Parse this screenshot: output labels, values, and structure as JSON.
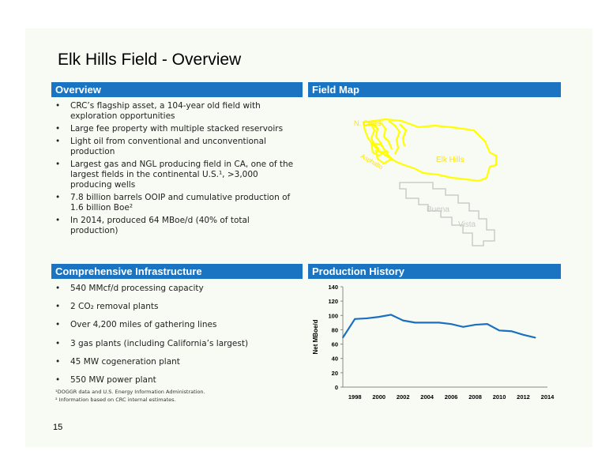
{
  "slide": {
    "title": "Elk Hills Field - Overview",
    "page_number": "15"
  },
  "overview": {
    "header": "Overview",
    "bullets": [
      "CRC’s flagship asset, a 104-year old field with exploration opportunities",
      "Large fee property with multiple stacked reservoirs",
      "Light oil from conventional and unconventional production",
      "Largest gas and NGL producing field in CA, one of the largest fields in the continental U.S.¹, >3,000 producing wells",
      "7.8 billion barrels OOIP and cumulative production of 1.6 billion Boe²",
      "In 2014, produced 64 MBoe/d (40% of total production)"
    ]
  },
  "field_map": {
    "header": "Field Map",
    "labels": {
      "north_coles": "N. Coles",
      "asphalto": "Asphalto",
      "elk_hills": "Elk Hills",
      "buena": "Buena",
      "vista": "Vista"
    },
    "colors": {
      "field_outline": "#ffff00",
      "other_outline": "#bfbfbf"
    }
  },
  "infrastructure": {
    "header": "Comprehensive Infrastructure",
    "bullets": [
      "540 MMcf/d processing capacity",
      "2 CO₂ removal plants",
      "Over 4,200 miles of gathering lines",
      "3 gas plants (including California’s largest)",
      "45 MW cogeneration plant",
      "550 MW power plant"
    ]
  },
  "footnotes": [
    "¹DOGGR data and U.S. Energy Information Administration.",
    "² Information based on CRC internal estimates."
  ],
  "production_history": {
    "header": "Production History"
  },
  "chart_data": {
    "type": "line",
    "title": "",
    "xlabel": "",
    "ylabel": "Net MBoe/d",
    "x": [
      1997,
      1998,
      1999,
      2000,
      2001,
      2002,
      2003,
      2004,
      2005,
      2006,
      2007,
      2008,
      2009,
      2010,
      2011,
      2012,
      2013,
      2014
    ],
    "series": [
      {
        "values": [
          69,
          95,
          96,
          98,
          101,
          93,
          90,
          90,
          90,
          88,
          84,
          87,
          88,
          79,
          78,
          73,
          69,
          null
        ]
      }
    ],
    "xticks": [
      "1998",
      "2000",
      "2002",
      "2004",
      "2006",
      "2008",
      "2010",
      "2012",
      "2014"
    ],
    "yticks": [
      "0",
      "20",
      "40",
      "60",
      "80",
      "100",
      "120",
      "140"
    ],
    "ylim": [
      0,
      140
    ],
    "grid": false,
    "legend": "none",
    "line_color": "#1b6fbf"
  },
  "colors": {
    "accent": "#1b74c1",
    "background": "#f7fbf3"
  }
}
